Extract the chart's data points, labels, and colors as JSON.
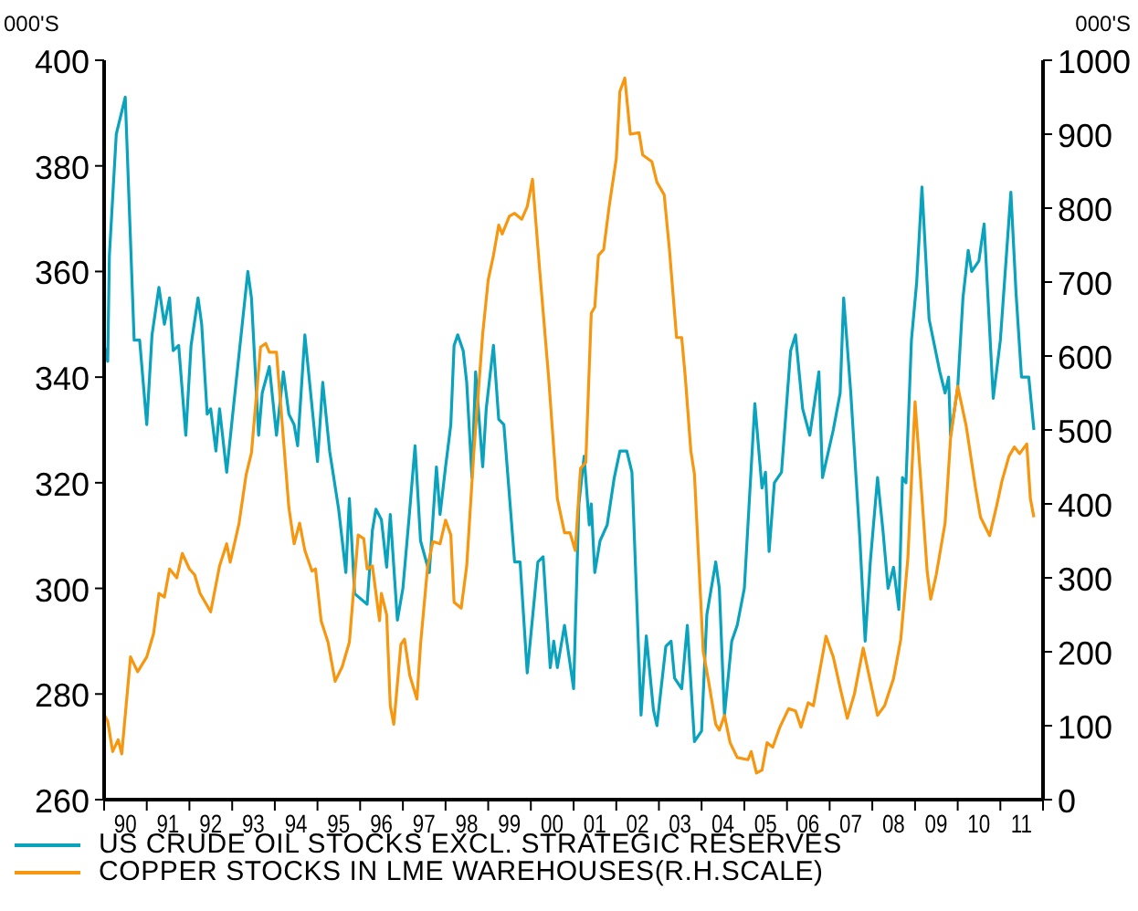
{
  "chart_data": {
    "type": "line",
    "ylabel": "000'S",
    "y2label": "000'S",
    "xlim": [
      "1990",
      "2012"
    ],
    "xticks": [
      {
        "value": "1990",
        "label": null
      },
      {
        "value": "1991",
        "label": null
      },
      {
        "value": "1992",
        "label": null
      },
      {
        "value": "1993",
        "label": null
      },
      {
        "value": "1994",
        "label": null
      },
      {
        "value": "1995",
        "label": null
      },
      {
        "value": "1996",
        "label": null
      },
      {
        "value": "1997",
        "label": null
      },
      {
        "value": "1998",
        "label": null
      },
      {
        "value": "1999",
        "label": null
      },
      {
        "value": "2000",
        "label": null
      },
      {
        "value": "2001",
        "label": null
      },
      {
        "value": "2002",
        "label": null
      },
      {
        "value": "2003",
        "label": null
      },
      {
        "value": "2004",
        "label": null
      },
      {
        "value": "2005",
        "label": null
      },
      {
        "value": "2006",
        "label": null
      },
      {
        "value": "2007",
        "label": null
      },
      {
        "value": "2008",
        "label": null
      },
      {
        "value": "2009",
        "label": null
      },
      {
        "value": "2010",
        "label": null
      },
      {
        "value": "2011",
        "label": null
      },
      {
        "value": "2012",
        "label": null
      },
      {
        "value": "1990-07",
        "label": "90"
      },
      {
        "value": "1991-07",
        "label": "91"
      },
      {
        "value": "1992-07",
        "label": "92"
      },
      {
        "value": "1993-07",
        "label": "93"
      },
      {
        "value": "1994-07",
        "label": "94"
      },
      {
        "value": "1995-07",
        "label": "95"
      },
      {
        "value": "1996-07",
        "label": "96"
      },
      {
        "value": "1997-07",
        "label": "97"
      },
      {
        "value": "1998-07",
        "label": "98"
      },
      {
        "value": "1999-07",
        "label": "99"
      },
      {
        "value": "2000-07",
        "label": "00"
      },
      {
        "value": "2001-07",
        "label": "01"
      },
      {
        "value": "2002-07",
        "label": "02"
      },
      {
        "value": "2003-07",
        "label": "03"
      },
      {
        "value": "2004-07",
        "label": "04"
      },
      {
        "value": "2005-07",
        "label": "05"
      },
      {
        "value": "2006-07",
        "label": "06"
      },
      {
        "value": "2007-07",
        "label": "07"
      },
      {
        "value": "2008-07",
        "label": "08"
      },
      {
        "value": "2009-07",
        "label": "09"
      },
      {
        "value": "2010-07",
        "label": "10"
      },
      {
        "value": "2011-07",
        "label": "11"
      }
    ],
    "ylim": [
      260,
      400
    ],
    "yticks": [
      260,
      280,
      300,
      320,
      340,
      360,
      380,
      400
    ],
    "y2lim": [
      0,
      1000
    ],
    "y2ticks": [
      0,
      100,
      200,
      300,
      400,
      500,
      600,
      700,
      800,
      900,
      1000
    ],
    "legend": "bottom",
    "grid": false,
    "marker": "none",
    "line_style": "solid",
    "series": [
      {
        "name": "US CRUDE OIL STOCKS EXCL. STRATEGIC RESERVES",
        "color": "#0aa3bd",
        "x": [
          "1990-01-01",
          "1990-02-01",
          "1990-02-15",
          "1990-04-15",
          "1990-07-01",
          "1990-09-15",
          "1990-11-01",
          "1991-01-01",
          "1991-02-15",
          "1991-04-15",
          "1991-06-01",
          "1991-07-15",
          "1991-08-15",
          "1991-10-01",
          "1991-12-01",
          "1992-01-15",
          "1992-03-15",
          "1992-04-15",
          "1992-06-01",
          "1992-07-01",
          "1992-08-15",
          "1992-09-15",
          "1992-11-15",
          "1993-01-15",
          "1993-05-15",
          "1993-06-15",
          "1993-08-15",
          "1993-09-15",
          "1993-11-15",
          "1994-01-15",
          "1994-03-15",
          "1994-05-01",
          "1994-06-15",
          "1994-07-15",
          "1994-09-15",
          "1995-01-01",
          "1995-02-15",
          "1995-04-15",
          "1995-07-01",
          "1995-09-01",
          "1995-10-01",
          "1995-11-15",
          "1996-03-01",
          "1996-04-15",
          "1996-05-15",
          "1996-07-01",
          "1996-08-15",
          "1996-09-15",
          "1996-11-15",
          "1997-01-01",
          "1997-03-01",
          "1997-04-15",
          "1997-06-01",
          "1997-08-15",
          "1997-10-15",
          "1997-11-15",
          "1998-01-01",
          "1998-02-15",
          "1998-03-15",
          "1998-04-15",
          "1998-06-01",
          "1998-07-01",
          "1998-08-15",
          "1998-09-15",
          "1998-11-15",
          "1998-12-15",
          "1999-02-15",
          "1999-04-01",
          "1999-05-15",
          "1999-08-15",
          "1999-10-01",
          "1999-12-01",
          "2000-03-01",
          "2000-04-15",
          "2000-06-15",
          "2000-07-15",
          "2000-08-15",
          "2000-10-15",
          "2001-01-01",
          "2001-02-15",
          "2001-04-01",
          "2001-05-15",
          "2001-06-01",
          "2001-07-01",
          "2001-08-15",
          "2001-10-15",
          "2001-12-15",
          "2002-02-01",
          "2002-04-01",
          "2002-05-15",
          "2002-08-01",
          "2002-09-15",
          "2002-11-15",
          "2002-12-15",
          "2003-03-01",
          "2003-04-15",
          "2003-05-15",
          "2003-07-15",
          "2003-09-01",
          "2003-11-01",
          "2004-01-01",
          "2004-02-15",
          "2004-05-01",
          "2004-06-01",
          "2004-07-15",
          "2004-09-15",
          "2004-11-01",
          "2005-01-01",
          "2005-04-01",
          "2005-06-01",
          "2005-07-01",
          "2005-08-01",
          "2005-09-15",
          "2005-11-15",
          "2006-02-01",
          "2006-03-15",
          "2006-05-15",
          "2006-07-15",
          "2006-10-01",
          "2006-11-01",
          "2007-02-01",
          "2007-04-01",
          "2007-05-01",
          "2007-07-01",
          "2007-09-15",
          "2007-11-01",
          "2007-12-15",
          "2008-02-15",
          "2008-04-01",
          "2008-05-15",
          "2008-07-01",
          "2008-08-15",
          "2008-09-15",
          "2008-10-15",
          "2008-12-01",
          "2009-01-15",
          "2009-03-01",
          "2009-05-01",
          "2009-08-01",
          "2009-09-15",
          "2009-10-15",
          "2009-11-01",
          "2010-01-01",
          "2010-02-15",
          "2010-04-01",
          "2010-05-01",
          "2010-07-01",
          "2010-08-15",
          "2010-11-01",
          "2011-01-01",
          "2011-04-01",
          "2011-05-15",
          "2011-07-01",
          "2011-09-01",
          "2011-10-15"
        ],
        "values": [
          346,
          343,
          363,
          386,
          393,
          347,
          347,
          331,
          348,
          357,
          350,
          355,
          345,
          346,
          329,
          346,
          355,
          350,
          333,
          334,
          326,
          334,
          322,
          335,
          360,
          355,
          329,
          337,
          342,
          329,
          341,
          333,
          331,
          327,
          348,
          324,
          339,
          326,
          315,
          303,
          317,
          299,
          297,
          311,
          315,
          313,
          304,
          314,
          294,
          300,
          315,
          327,
          309,
          303,
          323,
          314,
          323,
          331,
          346,
          348,
          345,
          339,
          321,
          341,
          323,
          334,
          346,
          332,
          331,
          305,
          305,
          284,
          305,
          306,
          285,
          290,
          285,
          293,
          281,
          316,
          325,
          312,
          316,
          303,
          309,
          312,
          321,
          326,
          326,
          322,
          276,
          291,
          277,
          274,
          289,
          290,
          283,
          281,
          293,
          271,
          273,
          295,
          305,
          300,
          276,
          290,
          293,
          300,
          335,
          319,
          322,
          307,
          320,
          322,
          345,
          348,
          334,
          329,
          341,
          321,
          330,
          337,
          355,
          337,
          310,
          290,
          305,
          321,
          311,
          300,
          304,
          296,
          321,
          320,
          347,
          358,
          376,
          351,
          341,
          337,
          340,
          329,
          338,
          355,
          364,
          360,
          362,
          369,
          336,
          347,
          375,
          356,
          340,
          340,
          330
        ]
      },
      {
        "name": "COPPER STOCKS IN LME WAREHOUSES(R.H.SCALE)",
        "color": "#f7960f",
        "axis": "y2",
        "x": [
          "1990-01-01",
          "1990-02-01",
          "1990-03-15",
          "1990-05-01",
          "1990-06-01",
          "1990-08-15",
          "1990-10-15",
          "1991-01-01",
          "1991-03-01",
          "1991-04-15",
          "1991-06-01",
          "1991-07-15",
          "1991-09-15",
          "1991-11-01",
          "1992-01-01",
          "1992-02-15",
          "1992-04-01",
          "1992-07-01",
          "1992-09-15",
          "1992-11-15",
          "1992-12-15",
          "1993-03-01",
          "1993-05-01",
          "1993-06-15",
          "1993-09-01",
          "1993-10-15",
          "1993-11-15",
          "1994-01-15",
          "1994-03-15",
          "1994-05-01",
          "1994-06-15",
          "1994-08-01",
          "1994-09-15",
          "1994-11-15",
          "1994-12-15",
          "1995-02-01",
          "1995-04-01",
          "1995-06-01",
          "1995-08-01",
          "1995-10-01",
          "1995-12-15",
          "1996-02-01",
          "1996-03-01",
          "1996-04-15",
          "1996-06-15",
          "1996-07-01",
          "1996-08-15",
          "1996-09-15",
          "1996-10-15",
          "1996-12-15",
          "1997-01-15",
          "1997-03-01",
          "1997-05-01",
          "1997-06-01",
          "1997-08-01",
          "1997-09-15",
          "1997-11-15",
          "1998-01-01",
          "1998-02-15",
          "1998-03-15",
          "1998-05-15",
          "1998-07-01",
          "1998-09-01",
          "1998-11-15",
          "1999-01-01",
          "1999-02-15",
          "1999-04-01",
          "1999-05-01",
          "1999-07-01",
          "1999-08-15",
          "1999-10-15",
          "1999-12-01",
          "2000-01-15",
          "2000-03-15",
          "2000-06-01",
          "2000-08-15",
          "2000-10-15",
          "2000-12-01",
          "2001-01-15",
          "2001-03-01",
          "2001-04-15",
          "2001-06-01",
          "2001-07-01",
          "2001-08-01",
          "2001-09-15",
          "2001-11-01",
          "2002-01-01",
          "2002-02-01",
          "2002-03-15",
          "2002-05-01",
          "2002-07-15",
          "2002-08-15",
          "2002-11-01",
          "2002-12-15",
          "2003-02-15",
          "2003-04-01",
          "2003-06-01",
          "2003-07-15",
          "2003-08-15",
          "2003-10-01",
          "2003-11-01",
          "2004-01-15",
          "2004-03-01",
          "2004-05-01",
          "2004-06-01",
          "2004-07-15",
          "2004-09-01",
          "2004-11-01",
          "2005-02-01",
          "2005-03-01",
          "2005-04-15",
          "2005-06-01",
          "2005-07-15",
          "2005-09-01",
          "2005-11-01",
          "2006-01-15",
          "2006-03-15",
          "2006-05-01",
          "2006-07-01",
          "2006-08-15",
          "2006-12-01",
          "2007-02-01",
          "2007-04-01",
          "2007-06-01",
          "2007-08-01",
          "2007-10-15",
          "2007-12-15",
          "2008-02-15",
          "2008-04-15",
          "2008-07-01",
          "2008-09-01",
          "2008-11-01",
          "2009-01-01",
          "2009-02-15",
          "2009-04-15",
          "2009-05-15",
          "2009-07-01",
          "2009-09-15",
          "2009-11-01",
          "2010-01-01",
          "2010-03-15",
          "2010-06-01",
          "2010-07-15",
          "2010-10-01",
          "2010-12-01",
          "2011-01-15",
          "2011-03-15",
          "2011-05-01",
          "2011-06-15",
          "2011-08-15",
          "2011-09-15",
          "2011-10-15"
        ],
        "values": [
          115,
          106,
          65,
          81,
          62,
          193,
          173,
          193,
          225,
          279,
          274,
          312,
          300,
          333,
          312,
          304,
          279,
          254,
          316,
          346,
          321,
          374,
          440,
          469,
          612,
          617,
          605,
          605,
          489,
          395,
          346,
          374,
          337,
          309,
          312,
          242,
          213,
          160,
          180,
          213,
          358,
          353,
          312,
          316,
          242,
          279,
          250,
          127,
          102,
          210,
          217,
          168,
          136,
          210,
          316,
          349,
          346,
          378,
          358,
          267,
          259,
          316,
          472,
          630,
          703,
          736,
          777,
          765,
          789,
          793,
          785,
          802,
          839,
          719,
          571,
          407,
          361,
          361,
          337,
          448,
          456,
          658,
          666,
          736,
          744,
          802,
          867,
          958,
          976,
          900,
          902,
          872,
          863,
          835,
          818,
          744,
          625,
          625,
          571,
          472,
          440,
          201,
          160,
          102,
          94,
          114,
          77,
          57,
          54,
          65,
          36,
          40,
          77,
          71,
          98,
          123,
          120,
          98,
          131,
          127,
          221,
          193,
          151,
          110,
          143,
          205,
          160,
          114,
          127,
          164,
          217,
          328,
          538,
          440,
          308,
          271,
          304,
          374,
          489,
          559,
          505,
          423,
          382,
          357,
          398,
          431,
          464,
          477,
          468,
          481,
          407,
          382
        ]
      }
    ]
  }
}
